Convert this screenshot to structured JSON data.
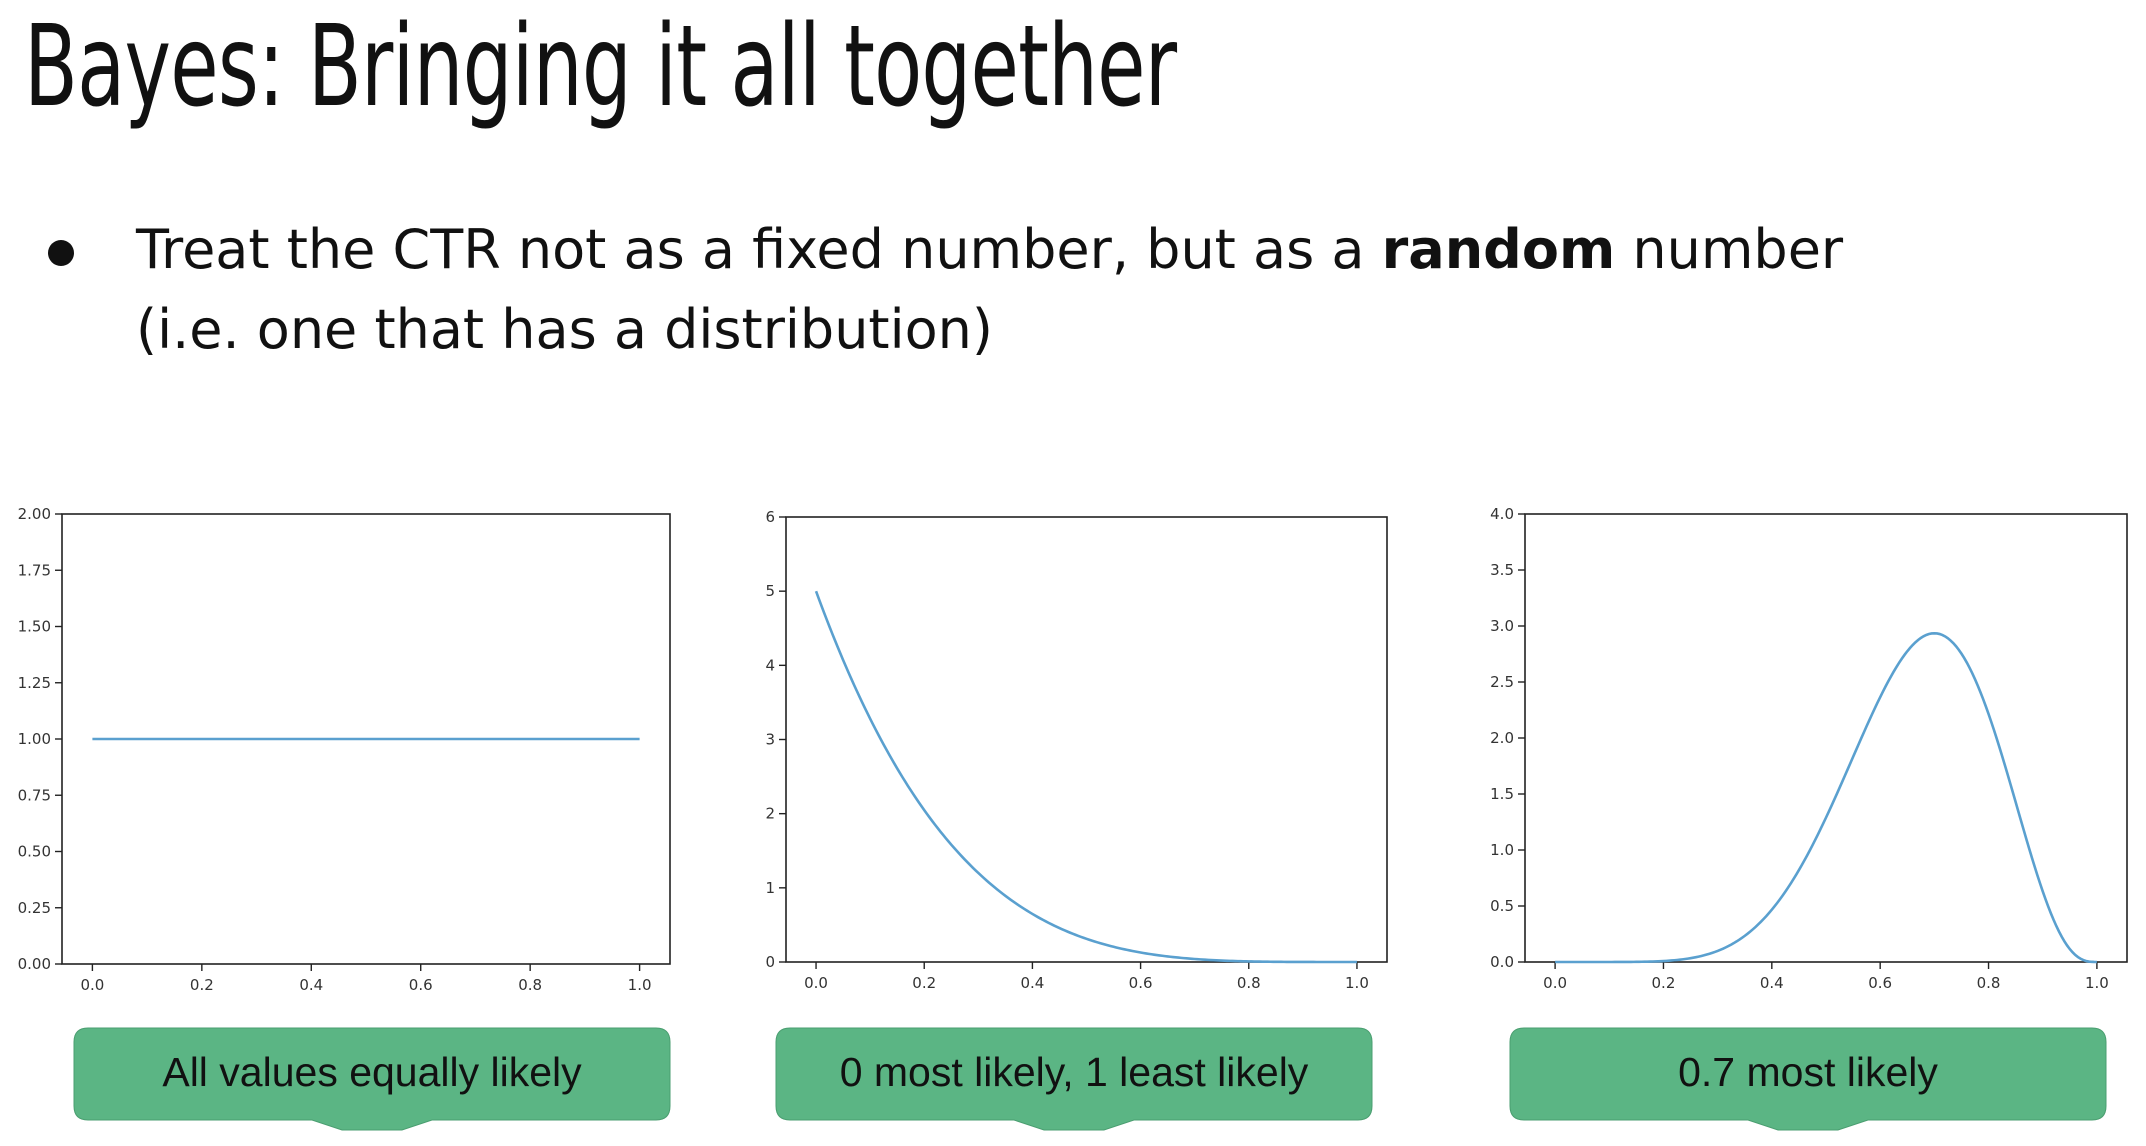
{
  "title": "Bayes: Bringing it all together",
  "bullet": {
    "part1": "Treat the CTR not as a fixed number, but as a ",
    "bold": "random",
    "part2": " number",
    "line2": "(i.e. one that has a distribution)"
  },
  "colors": {
    "line": "#5aa0cf",
    "callout_fill": "#5bb584",
    "callout_text": "#111111"
  },
  "chart_data": [
    {
      "type": "line",
      "title": "",
      "xlabel": "",
      "ylabel": "",
      "xlim": [
        0.0,
        1.0
      ],
      "ylim": [
        0.0,
        2.0
      ],
      "xticks": [
        "0.0",
        "0.2",
        "0.4",
        "0.6",
        "0.8",
        "1.0"
      ],
      "yticks": [
        "0.00",
        "0.25",
        "0.50",
        "0.75",
        "1.00",
        "1.25",
        "1.50",
        "1.75",
        "2.00"
      ],
      "series": [
        {
          "distribution": "Beta(1,1)",
          "x": [
            0.0,
            0.2,
            0.4,
            0.6,
            0.8,
            1.0
          ],
          "y": [
            1,
            1,
            1,
            1,
            1,
            1
          ]
        }
      ],
      "caption": "All values equally likely"
    },
    {
      "type": "line",
      "title": "",
      "xlabel": "",
      "ylabel": "",
      "xlim": [
        0.0,
        1.0
      ],
      "ylim": [
        0,
        6
      ],
      "xticks": [
        "0.0",
        "0.2",
        "0.4",
        "0.6",
        "0.8",
        "1.0"
      ],
      "yticks": [
        "0",
        "1",
        "2",
        "3",
        "4",
        "5",
        "6"
      ],
      "series": [
        {
          "distribution": "Beta(1,5)",
          "x": [
            0.0,
            0.1,
            0.2,
            0.3,
            0.4,
            0.5,
            0.6,
            0.7,
            0.8
          ],
          "y": [
            5.0,
            3.28,
            2.05,
            1.2,
            0.65,
            0.31,
            0.13,
            0.04,
            0.01
          ]
        }
      ],
      "caption": "0 most likely, 1 least likely"
    },
    {
      "type": "line",
      "title": "",
      "xlabel": "",
      "ylabel": "",
      "xlim": [
        0.0,
        1.0
      ],
      "ylim": [
        0.0,
        4.0
      ],
      "xticks": [
        "0.0",
        "0.2",
        "0.4",
        "0.6",
        "0.8",
        "1.0"
      ],
      "yticks": [
        "0.0",
        "0.5",
        "1.0",
        "1.5",
        "2.0",
        "2.5",
        "3.0",
        "3.5",
        "4.0"
      ],
      "series": [
        {
          "distribution": "Beta(8,4)",
          "x": [
            0.0,
            0.2,
            0.3,
            0.4,
            0.5,
            0.6,
            0.7,
            0.8,
            0.9,
            1.0
          ],
          "y": [
            0,
            0.02,
            0.19,
            0.75,
            1.61,
            2.51,
            2.93,
            2.4,
            0.95,
            0
          ]
        }
      ],
      "caption": "0.7 most likely"
    }
  ]
}
